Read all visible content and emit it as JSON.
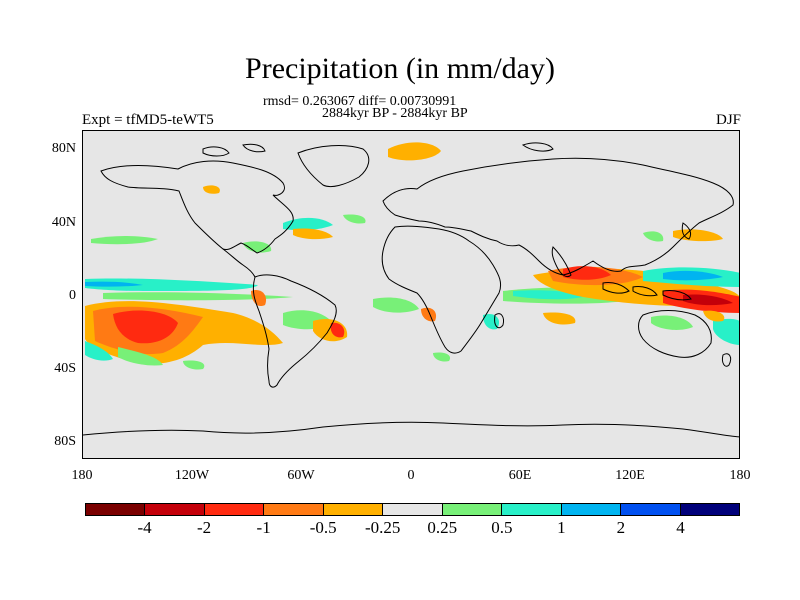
{
  "title": "Precipitation (in mm/day)",
  "stats_line": "rmsd= 0.263067 diff= 0.00730991",
  "period_line": "2884kyr BP - 2884kyr BP",
  "experiment": "Expt = tfMD5-teWT5",
  "season": "DJF",
  "lat_labels": [
    "80N",
    "40N",
    "0",
    "40S",
    "80S"
  ],
  "lon_labels": [
    "180",
    "120W",
    "60W",
    "0",
    "60E",
    "120E",
    "180"
  ],
  "colorbar": {
    "colors": [
      "#7a0000",
      "#c4000a",
      "#ff2a10",
      "#ff7a14",
      "#ffb000",
      "#e6e6e6",
      "#78f078",
      "#28f0c8",
      "#00b4f0",
      "#0050f0",
      "#00007a"
    ],
    "labels": [
      "-4",
      "-2",
      "-1",
      "-0.5",
      "-0.25",
      "0.25",
      "0.5",
      "1",
      "2",
      "4"
    ]
  },
  "colors": {
    "background": "#e6e6e6",
    "coast": "#000000"
  }
}
